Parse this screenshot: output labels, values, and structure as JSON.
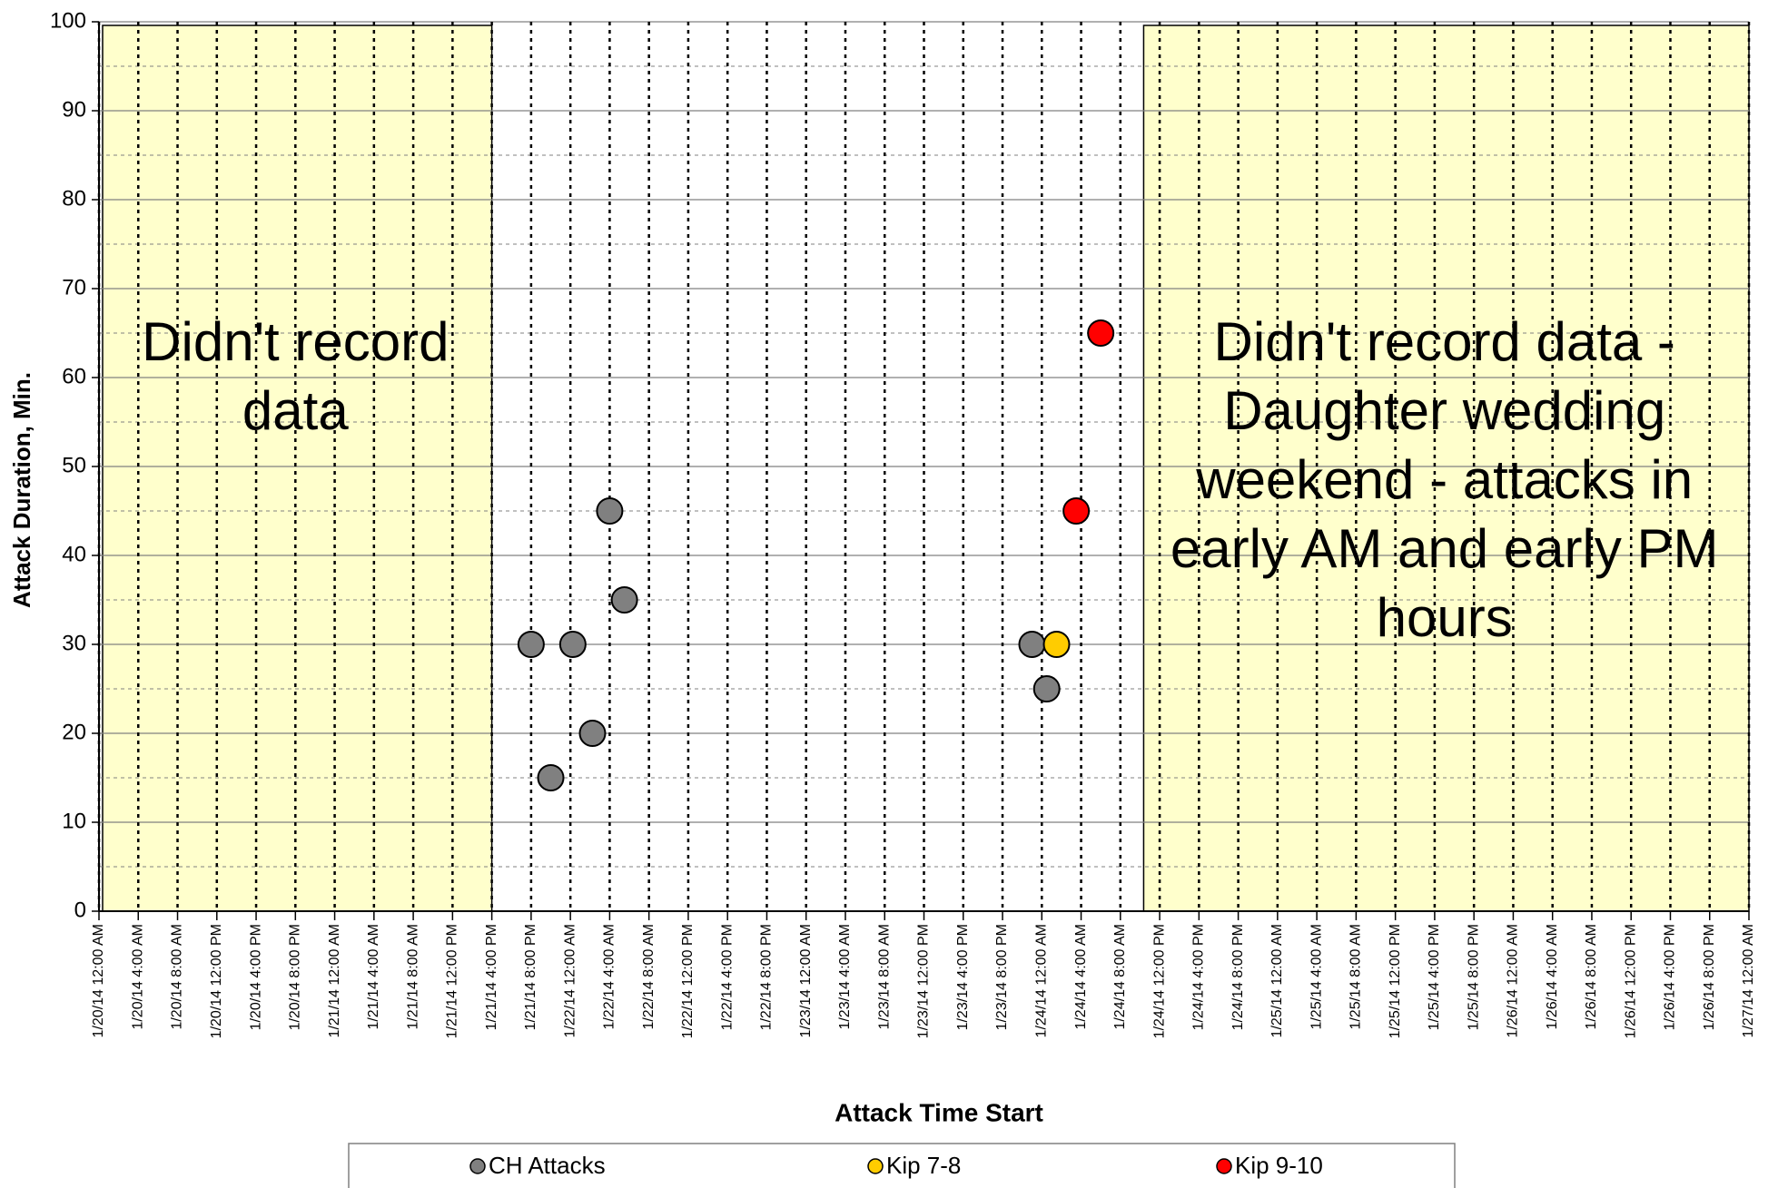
{
  "chart_data": {
    "type": "scatter",
    "xlabel": "Attack Time Start",
    "ylabel": "Attack Duration, Min.",
    "ylim": [
      0,
      100
    ],
    "yticks": [
      0,
      10,
      20,
      30,
      40,
      50,
      60,
      70,
      80,
      90,
      100
    ],
    "yminorticks": [
      5,
      15,
      25,
      35,
      45,
      55,
      65,
      75,
      85,
      95
    ],
    "grid": true,
    "legend": "bottom",
    "xlim": [
      "2014-01-20T00:00",
      "2014-01-27T00:00"
    ],
    "xticks": [
      {
        "value": "2014-01-20T00:00",
        "label": "1/20/14 12:00 AM"
      },
      {
        "value": "2014-01-20T04:00",
        "label": "1/20/14 4:00 AM"
      },
      {
        "value": "2014-01-20T08:00",
        "label": "1/20/14 8:00 AM"
      },
      {
        "value": "2014-01-20T12:00",
        "label": "1/20/14 12:00 PM"
      },
      {
        "value": "2014-01-20T16:00",
        "label": "1/20/14 4:00 PM"
      },
      {
        "value": "2014-01-20T20:00",
        "label": "1/20/14 8:00 PM"
      },
      {
        "value": "2014-01-21T00:00",
        "label": "1/21/14 12:00 AM"
      },
      {
        "value": "2014-01-21T04:00",
        "label": "1/21/14 4:00 AM"
      },
      {
        "value": "2014-01-21T08:00",
        "label": "1/21/14 8:00 AM"
      },
      {
        "value": "2014-01-21T12:00",
        "label": "1/21/14 12:00 PM"
      },
      {
        "value": "2014-01-21T16:00",
        "label": "1/21/14 4:00 PM"
      },
      {
        "value": "2014-01-21T20:00",
        "label": "1/21/14 8:00 PM"
      },
      {
        "value": "2014-01-22T00:00",
        "label": "1/22/14 12:00 AM"
      },
      {
        "value": "2014-01-22T04:00",
        "label": "1/22/14 4:00 AM"
      },
      {
        "value": "2014-01-22T08:00",
        "label": "1/22/14 8:00 AM"
      },
      {
        "value": "2014-01-22T12:00",
        "label": "1/22/14 12:00 PM"
      },
      {
        "value": "2014-01-22T16:00",
        "label": "1/22/14 4:00 PM"
      },
      {
        "value": "2014-01-22T20:00",
        "label": "1/22/14 8:00 PM"
      },
      {
        "value": "2014-01-23T00:00",
        "label": "1/23/14 12:00 AM"
      },
      {
        "value": "2014-01-23T04:00",
        "label": "1/23/14 4:00 AM"
      },
      {
        "value": "2014-01-23T08:00",
        "label": "1/23/14 8:00 AM"
      },
      {
        "value": "2014-01-23T12:00",
        "label": "1/23/14 12:00 PM"
      },
      {
        "value": "2014-01-23T16:00",
        "label": "1/23/14 4:00 PM"
      },
      {
        "value": "2014-01-23T20:00",
        "label": "1/23/14 8:00 PM"
      },
      {
        "value": "2014-01-24T00:00",
        "label": "1/24/14 12:00 AM"
      },
      {
        "value": "2014-01-24T04:00",
        "label": "1/24/14 4:00 AM"
      },
      {
        "value": "2014-01-24T08:00",
        "label": "1/24/14 8:00 AM"
      },
      {
        "value": "2014-01-24T12:00",
        "label": "1/24/14 12:00 PM"
      },
      {
        "value": "2014-01-24T16:00",
        "label": "1/24/14 4:00 PM"
      },
      {
        "value": "2014-01-24T20:00",
        "label": "1/24/14 8:00 PM"
      },
      {
        "value": "2014-01-25T00:00",
        "label": "1/25/14 12:00 AM"
      },
      {
        "value": "2014-01-25T04:00",
        "label": "1/25/14 4:00 AM"
      },
      {
        "value": "2014-01-25T08:00",
        "label": "1/25/14 8:00 AM"
      },
      {
        "value": "2014-01-25T12:00",
        "label": "1/25/14 12:00 PM"
      },
      {
        "value": "2014-01-25T16:00",
        "label": "1/25/14 4:00 PM"
      },
      {
        "value": "2014-01-25T20:00",
        "label": "1/25/14 8:00 PM"
      },
      {
        "value": "2014-01-26T00:00",
        "label": "1/26/14 12:00 AM"
      },
      {
        "value": "2014-01-26T04:00",
        "label": "1/26/14 4:00 AM"
      },
      {
        "value": "2014-01-26T08:00",
        "label": "1/26/14 8:00 AM"
      },
      {
        "value": "2014-01-26T12:00",
        "label": "1/26/14 12:00 PM"
      },
      {
        "value": "2014-01-26T16:00",
        "label": "1/26/14 4:00 PM"
      },
      {
        "value": "2014-01-26T20:00",
        "label": "1/26/14 8:00 PM"
      },
      {
        "value": "2014-01-27T00:00",
        "label": "1/27/14 12:00 AM"
      }
    ],
    "series": [
      {
        "name": "CH Attacks",
        "color": "#808080",
        "x": [
          "2014-01-21T20:00",
          "2014-01-21T22:00",
          "2014-01-22T00:15",
          "2014-01-22T02:15",
          "2014-01-22T04:00",
          "2014-01-22T05:30",
          "2014-01-23T23:00",
          "2014-01-24T00:30"
        ],
        "values": [
          30,
          15,
          30,
          20,
          45,
          35,
          30,
          25
        ]
      },
      {
        "name": "Kip 7-8",
        "color": "#ffcc00",
        "x": [
          "2014-01-24T01:30"
        ],
        "values": [
          30
        ]
      },
      {
        "name": "Kip 9-10",
        "color": "#ff0000",
        "x": [
          "2014-01-24T03:30",
          "2014-01-24T06:00"
        ],
        "values": [
          45,
          65
        ]
      }
    ],
    "regions": [
      {
        "xlim": [
          "2014-01-20T00:00",
          "2014-01-21T16:00"
        ],
        "color": "#ffffcc",
        "lines": [
          "Didn't record",
          "data"
        ]
      },
      {
        "xlim": [
          "2014-01-24T10:00",
          "2014-01-27T00:00"
        ],
        "color": "#ffffcc",
        "lines": [
          "Didn't record data -",
          "Daughter wedding",
          "weekend - attacks in",
          "early AM and early PM",
          "hours"
        ]
      }
    ]
  }
}
